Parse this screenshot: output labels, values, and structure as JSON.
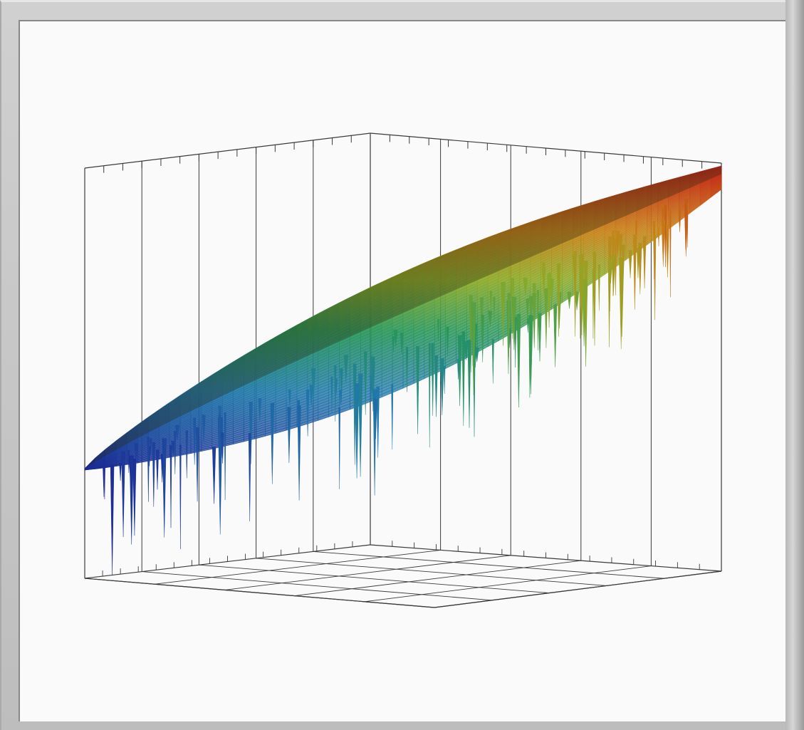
{
  "chart_data": {
    "type": "surface3d",
    "title": "",
    "xlabel": "",
    "ylabel": "",
    "zlabel": "",
    "colormap": "jet",
    "grid": true,
    "legend": "none",
    "colors": {
      "low": "#1f3fa8",
      "mid": "#3aa86b",
      "high": "#c8261c",
      "box": "#3a3a3a",
      "background": "#fafafa"
    },
    "description_values": {
      "trend": "increasing",
      "surface_rows": 40,
      "surface_cols": 60
    }
  }
}
